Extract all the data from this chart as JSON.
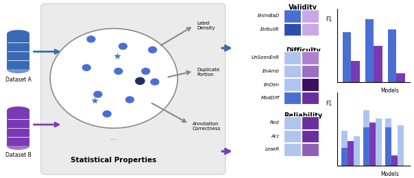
{
  "fig_width": 6.04,
  "fig_height": 2.6,
  "dpi": 100,
  "white": "#ffffff",
  "blue_dark": "#2b4faa",
  "blue_med": "#4a6fd4",
  "blue_light": "#7b9ee0",
  "blue_vlight": "#b0c4f0",
  "purple_dark": "#4a1a8a",
  "purple_med": "#7b3ab5",
  "purple_light": "#a06fcc",
  "purple_vlight": "#c9a8e8",
  "dataset_a_color": "#3a6ab5",
  "dataset_b_color": "#7b3ab5",
  "heatmap_validity": {
    "row1": [
      "#4a6fd4",
      "#c9a8e8"
    ],
    "row2": [
      "#2b4faa",
      "#c9a8e8"
    ]
  },
  "heatmap_difficulty": {
    "row1": [
      "#b0c4f0",
      "#b080d0"
    ],
    "row2": [
      "#b0c4f0",
      "#9870c0"
    ],
    "row3": [
      "#b0c4f0",
      "#3a1060"
    ],
    "row4": [
      "#4a6fd4",
      "#6a30a0"
    ]
  },
  "heatmap_reliability": {
    "row1": [
      "#b0c4f0",
      "#6a30a0"
    ],
    "row2": [
      "#b0c4f0",
      "#6a30a0"
    ],
    "row3": [
      "#b0c4f0",
      "#9060b8"
    ]
  },
  "validity_labels": [
    "EnImBaD",
    "EnNullR"
  ],
  "difficulty_labels": [
    "UnSeenEnR",
    "EnAmb",
    "EnDen",
    "ModDiff"
  ],
  "reliability_labels": [
    "Red",
    "Acc",
    "LeakR"
  ],
  "in_domain_bars": {
    "blue": [
      0.72,
      0.9,
      0.75
    ],
    "purple": [
      0.3,
      0.52,
      0.12
    ]
  },
  "out_domain_bars": {
    "blue_light": [
      0.5,
      0.8,
      0.68
    ],
    "blue_dark": [
      0.25,
      0.55,
      0.55
    ],
    "purple": [
      0.35,
      0.62,
      0.15
    ]
  }
}
